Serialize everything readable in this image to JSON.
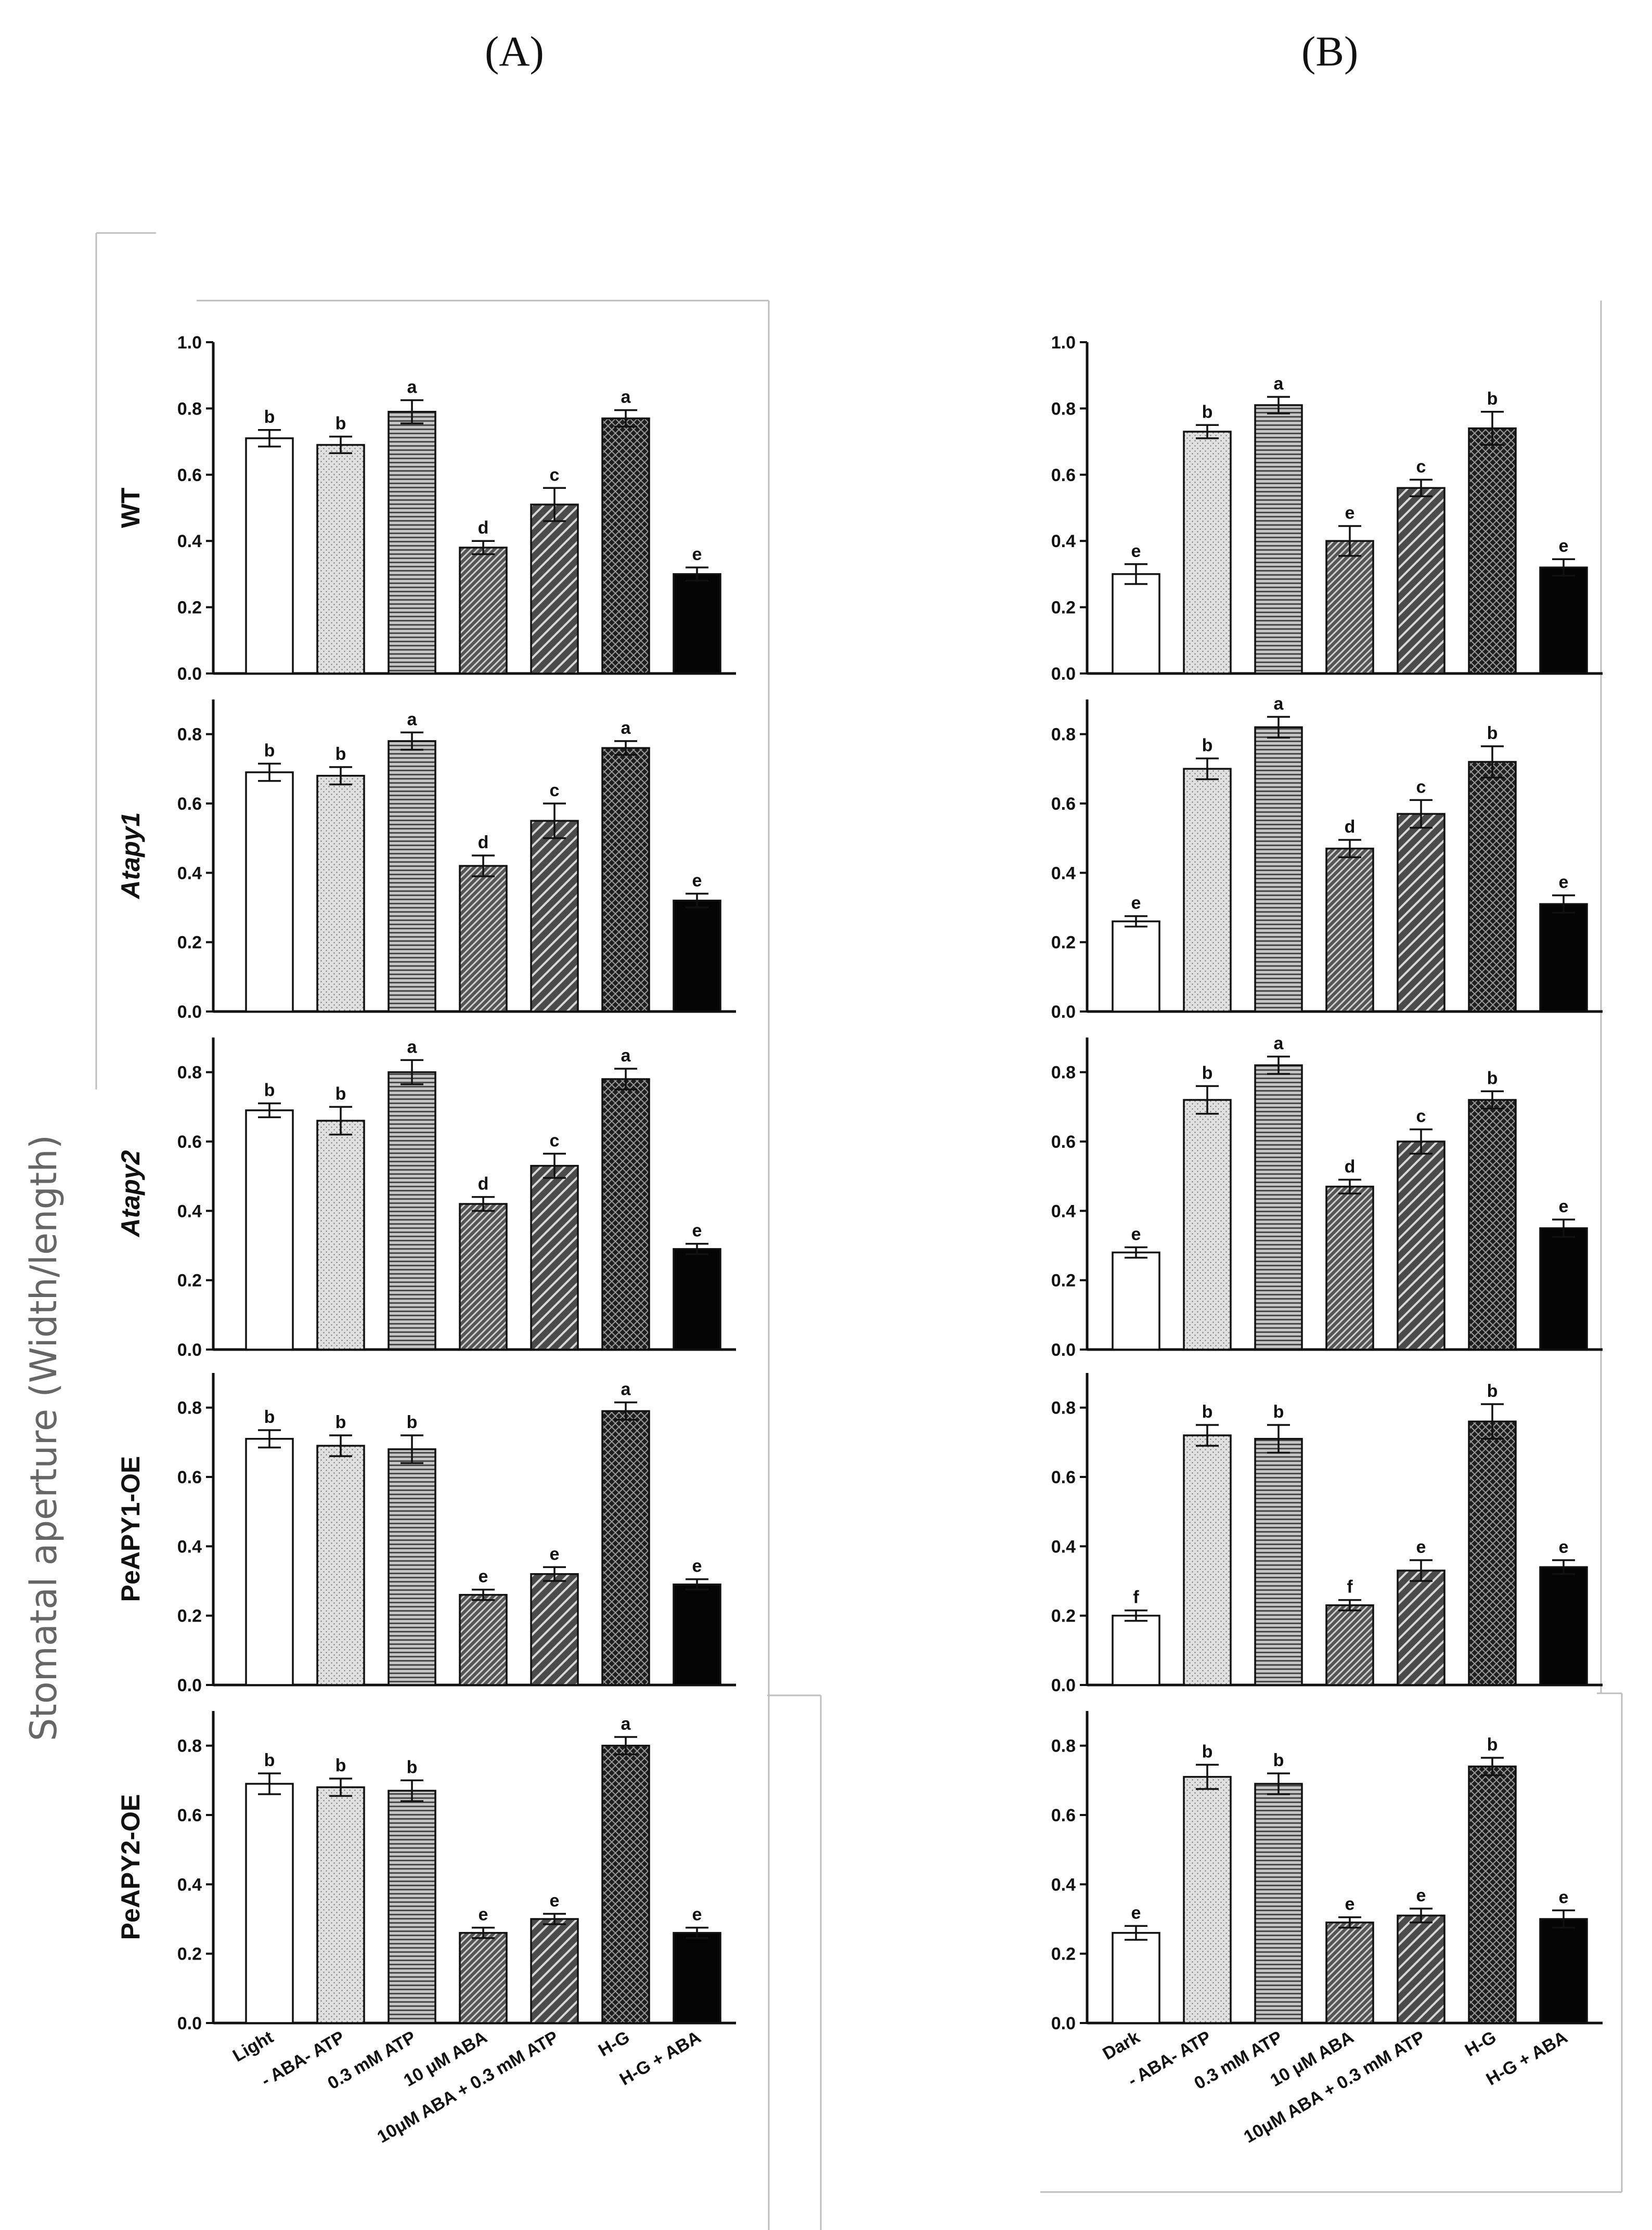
{
  "figure": {
    "panel_labels": [
      "(A)",
      "(B)"
    ],
    "y_title": "Stomatal aperture (Width/length)"
  },
  "chart_data": {
    "type": "bar",
    "panels": [
      {
        "label": "(A)",
        "categories": [
          "Light",
          "- ABA- ATP",
          "0.3 mM ATP",
          "10 μM ABA",
          "10μM ABA + 0.3 mM ATP",
          "H-G",
          "H-G + ABA"
        ],
        "subplots": [
          {
            "row_label": "WT",
            "ylim": [
              0,
              1.0
            ],
            "ticks": [
              "0.0",
              "0.2",
              "0.4",
              "0.6",
              "0.8",
              "1.0"
            ],
            "values": [
              0.71,
              0.69,
              0.79,
              0.38,
              0.51,
              0.77,
              0.3
            ],
            "errors": [
              0.025,
              0.025,
              0.035,
              0.02,
              0.05,
              0.025,
              0.02
            ],
            "letters": [
              "b",
              "b",
              "a",
              "d",
              "c",
              "a",
              "e"
            ]
          },
          {
            "row_label": "Atapy1",
            "ylim": [
              0,
              0.9
            ],
            "ticks": [
              "0.0",
              "0.2",
              "0.4",
              "0.6",
              "0.8"
            ],
            "values": [
              0.69,
              0.68,
              0.78,
              0.42,
              0.55,
              0.76,
              0.32
            ],
            "errors": [
              0.025,
              0.025,
              0.025,
              0.03,
              0.05,
              0.02,
              0.02
            ],
            "letters": [
              "b",
              "b",
              "a",
              "d",
              "c",
              "a",
              "e"
            ]
          },
          {
            "row_label": "Atapy2",
            "ylim": [
              0,
              0.9
            ],
            "ticks": [
              "0.0",
              "0.2",
              "0.4",
              "0.6",
              "0.8"
            ],
            "values": [
              0.69,
              0.66,
              0.8,
              0.42,
              0.53,
              0.78,
              0.29
            ],
            "errors": [
              0.02,
              0.04,
              0.035,
              0.02,
              0.035,
              0.03,
              0.015
            ],
            "letters": [
              "b",
              "b",
              "a",
              "d",
              "c",
              "a",
              "e"
            ]
          },
          {
            "row_label": "PeAPY1-OE",
            "ylim": [
              0,
              0.9
            ],
            "ticks": [
              "0.0",
              "0.2",
              "0.4",
              "0.6",
              "0.8"
            ],
            "values": [
              0.71,
              0.69,
              0.68,
              0.26,
              0.32,
              0.79,
              0.29
            ],
            "errors": [
              0.025,
              0.03,
              0.04,
              0.015,
              0.02,
              0.025,
              0.015
            ],
            "letters": [
              "b",
              "b",
              "b",
              "e",
              "e",
              "a",
              "e"
            ]
          },
          {
            "row_label": "PeAPY2-OE",
            "ylim": [
              0,
              0.9
            ],
            "ticks": [
              "0.0",
              "0.2",
              "0.4",
              "0.6",
              "0.8"
            ],
            "values": [
              0.69,
              0.68,
              0.67,
              0.26,
              0.3,
              0.8,
              0.26
            ],
            "errors": [
              0.03,
              0.025,
              0.03,
              0.015,
              0.015,
              0.025,
              0.015
            ],
            "letters": [
              "b",
              "b",
              "b",
              "e",
              "e",
              "a",
              "e"
            ]
          }
        ]
      },
      {
        "label": "(B)",
        "categories": [
          "Dark",
          "- ABA- ATP",
          "0.3 mM ATP",
          "10 μM ABA",
          "10μM ABA + 0.3 mM ATP",
          "H-G",
          "H-G + ABA"
        ],
        "subplots": [
          {
            "row_label": "WT",
            "ylim": [
              0,
              1.0
            ],
            "ticks": [
              "0.0",
              "0.2",
              "0.4",
              "0.6",
              "0.8",
              "1.0"
            ],
            "values": [
              0.3,
              0.73,
              0.81,
              0.4,
              0.56,
              0.74,
              0.32
            ],
            "errors": [
              0.03,
              0.02,
              0.025,
              0.045,
              0.025,
              0.05,
              0.025
            ],
            "letters": [
              "e",
              "b",
              "a",
              "e",
              "c",
              "b",
              "e"
            ]
          },
          {
            "row_label": "Atapy1",
            "ylim": [
              0,
              0.9
            ],
            "ticks": [
              "0.0",
              "0.2",
              "0.4",
              "0.6",
              "0.8"
            ],
            "values": [
              0.26,
              0.7,
              0.82,
              0.47,
              0.57,
              0.72,
              0.31
            ],
            "errors": [
              0.015,
              0.03,
              0.03,
              0.025,
              0.04,
              0.045,
              0.025
            ],
            "letters": [
              "e",
              "b",
              "a",
              "d",
              "c",
              "b",
              "e"
            ]
          },
          {
            "row_label": "Atapy2",
            "ylim": [
              0,
              0.9
            ],
            "ticks": [
              "0.0",
              "0.2",
              "0.4",
              "0.6",
              "0.8"
            ],
            "values": [
              0.28,
              0.72,
              0.82,
              0.47,
              0.6,
              0.72,
              0.35
            ],
            "errors": [
              0.015,
              0.04,
              0.025,
              0.02,
              0.035,
              0.025,
              0.025
            ],
            "letters": [
              "e",
              "b",
              "a",
              "d",
              "c",
              "b",
              "e"
            ]
          },
          {
            "row_label": "PeAPY1-OE",
            "ylim": [
              0,
              0.9
            ],
            "ticks": [
              "0.0",
              "0.2",
              "0.4",
              "0.6",
              "0.8"
            ],
            "values": [
              0.2,
              0.72,
              0.71,
              0.23,
              0.33,
              0.76,
              0.34
            ],
            "errors": [
              0.015,
              0.03,
              0.04,
              0.015,
              0.03,
              0.05,
              0.02
            ],
            "letters": [
              "f",
              "b",
              "b",
              "f",
              "e",
              "b",
              "e"
            ]
          },
          {
            "row_label": "PeAPY2-OE",
            "ylim": [
              0,
              0.9
            ],
            "ticks": [
              "0.0",
              "0.2",
              "0.4",
              "0.6",
              "0.8"
            ],
            "values": [
              0.26,
              0.71,
              0.69,
              0.29,
              0.31,
              0.74,
              0.3
            ],
            "errors": [
              0.02,
              0.035,
              0.03,
              0.015,
              0.02,
              0.025,
              0.025
            ],
            "letters": [
              "e",
              "b",
              "b",
              "e",
              "e",
              "b",
              "e"
            ]
          }
        ]
      }
    ]
  }
}
